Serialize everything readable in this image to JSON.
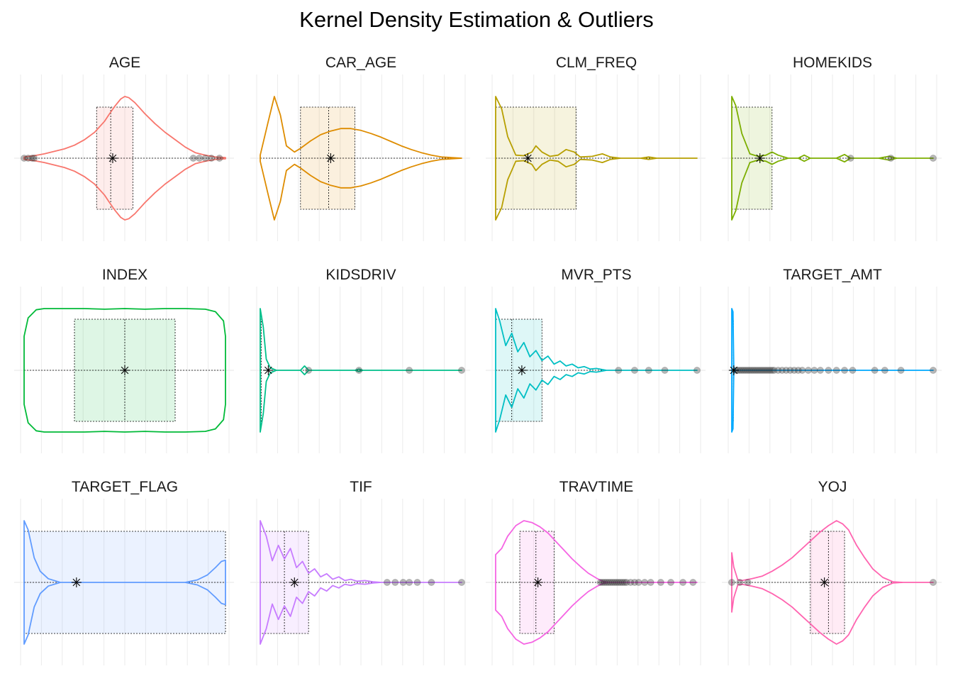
{
  "title": "Kernel Density Estimation & Outliers",
  "chart_data": {
    "type": "violin",
    "title": "Kernel Density Estimation & Outliers",
    "xlabel": "",
    "ylabel": "",
    "grid": "vertical",
    "legend": "none",
    "value_scale": "normalized 0-1 within each panel",
    "panels": [
      {
        "name": "AGE",
        "color": "#F8766D",
        "density": [
          [
            0.0,
            0.02
          ],
          [
            0.05,
            0.04
          ],
          [
            0.1,
            0.07
          ],
          [
            0.15,
            0.11
          ],
          [
            0.2,
            0.15
          ],
          [
            0.25,
            0.21
          ],
          [
            0.3,
            0.3
          ],
          [
            0.35,
            0.42
          ],
          [
            0.4,
            0.6
          ],
          [
            0.42,
            0.7
          ],
          [
            0.45,
            0.84
          ],
          [
            0.48,
            0.96
          ],
          [
            0.5,
            1.0
          ],
          [
            0.52,
            0.98
          ],
          [
            0.55,
            0.9
          ],
          [
            0.6,
            0.72
          ],
          [
            0.65,
            0.56
          ],
          [
            0.7,
            0.42
          ],
          [
            0.75,
            0.3
          ],
          [
            0.8,
            0.18
          ],
          [
            0.85,
            0.09
          ],
          [
            0.9,
            0.05
          ],
          [
            0.95,
            0.02
          ],
          [
            1.0,
            0.01
          ]
        ],
        "box": {
          "q1": 0.36,
          "median": 0.43,
          "q3": 0.54,
          "mean": 0.44
        },
        "outliers": [
          0.0,
          0.02,
          0.04,
          0.05,
          0.84,
          0.87,
          0.9,
          0.93,
          0.97
        ]
      },
      {
        "name": "CAR_AGE",
        "color": "#DE8C00",
        "density": [
          [
            0.0,
            0.05
          ],
          [
            0.04,
            0.6
          ],
          [
            0.07,
            1.0
          ],
          [
            0.1,
            0.7
          ],
          [
            0.13,
            0.2
          ],
          [
            0.17,
            0.1
          ],
          [
            0.2,
            0.16
          ],
          [
            0.25,
            0.28
          ],
          [
            0.3,
            0.38
          ],
          [
            0.35,
            0.44
          ],
          [
            0.4,
            0.48
          ],
          [
            0.45,
            0.48
          ],
          [
            0.5,
            0.45
          ],
          [
            0.55,
            0.4
          ],
          [
            0.6,
            0.34
          ],
          [
            0.65,
            0.27
          ],
          [
            0.7,
            0.2
          ],
          [
            0.75,
            0.14
          ],
          [
            0.8,
            0.09
          ],
          [
            0.85,
            0.05
          ],
          [
            0.9,
            0.02
          ],
          [
            0.95,
            0.01
          ],
          [
            1.0,
            0.0
          ]
        ],
        "box": {
          "q1": 0.2,
          "median": 0.34,
          "q3": 0.47,
          "mean": 0.35
        },
        "outliers": []
      },
      {
        "name": "CLM_FREQ",
        "color": "#B79F00",
        "density": [
          [
            0.0,
            1.0
          ],
          [
            0.03,
            0.8
          ],
          [
            0.06,
            0.35
          ],
          [
            0.1,
            0.05
          ],
          [
            0.14,
            0.04
          ],
          [
            0.18,
            0.1
          ],
          [
            0.2,
            0.2
          ],
          [
            0.23,
            0.1
          ],
          [
            0.27,
            0.03
          ],
          [
            0.31,
            0.05
          ],
          [
            0.35,
            0.14
          ],
          [
            0.39,
            0.1
          ],
          [
            0.42,
            0.02
          ],
          [
            0.48,
            0.03
          ],
          [
            0.53,
            0.07
          ],
          [
            0.57,
            0.02
          ],
          [
            0.62,
            0.0
          ],
          [
            0.72,
            0.0
          ],
          [
            0.76,
            0.02
          ],
          [
            0.8,
            0.0
          ],
          [
            1.0,
            0.0
          ]
        ],
        "box": {
          "q1": 0.0,
          "median": 0.0,
          "q3": 0.4,
          "mean": 0.16
        },
        "outliers": []
      },
      {
        "name": "HOMEKIDS",
        "color": "#7CAE00",
        "density": [
          [
            0.0,
            1.0
          ],
          [
            0.02,
            0.85
          ],
          [
            0.05,
            0.4
          ],
          [
            0.09,
            0.07
          ],
          [
            0.13,
            0.03
          ],
          [
            0.17,
            0.05
          ],
          [
            0.2,
            0.1
          ],
          [
            0.23,
            0.05
          ],
          [
            0.28,
            0.0
          ],
          [
            0.33,
            0.0
          ],
          [
            0.36,
            0.05
          ],
          [
            0.39,
            0.0
          ],
          [
            0.52,
            0.0
          ],
          [
            0.56,
            0.06
          ],
          [
            0.59,
            0.0
          ],
          [
            0.73,
            0.0
          ],
          [
            0.78,
            0.03
          ],
          [
            0.82,
            0.0
          ],
          [
            1.0,
            0.0
          ]
        ],
        "box": {
          "q1": 0.0,
          "median": 0.0,
          "q3": 0.2,
          "mean": 0.14
        },
        "outliers": [
          0.59,
          0.79,
          1.0
        ]
      },
      {
        "name": "INDEX",
        "color": "#00BA38",
        "density": [
          [
            0.0,
            0.55
          ],
          [
            0.02,
            0.85
          ],
          [
            0.06,
            0.98
          ],
          [
            0.1,
            1.0
          ],
          [
            0.2,
            1.0
          ],
          [
            0.3,
            1.0
          ],
          [
            0.4,
            0.99
          ],
          [
            0.5,
            1.0
          ],
          [
            0.6,
            0.99
          ],
          [
            0.7,
            1.0
          ],
          [
            0.8,
            1.0
          ],
          [
            0.9,
            0.99
          ],
          [
            0.95,
            0.95
          ],
          [
            0.99,
            0.8
          ],
          [
            1.0,
            0.55
          ]
        ],
        "box": {
          "q1": 0.25,
          "median": 0.5,
          "q3": 0.75,
          "mean": 0.5
        },
        "outliers": []
      },
      {
        "name": "KIDSDRIV",
        "color": "#00C08B",
        "density": [
          [
            0.0,
            1.0
          ],
          [
            0.015,
            0.7
          ],
          [
            0.03,
            0.18
          ],
          [
            0.05,
            0.04
          ],
          [
            0.08,
            0.0
          ],
          [
            0.2,
            0.0
          ],
          [
            0.22,
            0.07
          ],
          [
            0.24,
            0.0
          ],
          [
            0.47,
            0.0
          ],
          [
            0.49,
            0.02
          ],
          [
            0.51,
            0.0
          ],
          [
            1.0,
            0.0
          ]
        ],
        "box": {
          "q1": 0.0,
          "median": 0.0,
          "q3": 0.0,
          "mean": 0.04
        },
        "outliers": [
          0.24,
          0.49,
          0.74,
          1.0
        ]
      },
      {
        "name": "MVR_PTS",
        "color": "#00BFC4",
        "density": [
          [
            0.0,
            1.0
          ],
          [
            0.02,
            0.8
          ],
          [
            0.05,
            0.4
          ],
          [
            0.08,
            0.6
          ],
          [
            0.11,
            0.3
          ],
          [
            0.14,
            0.45
          ],
          [
            0.17,
            0.22
          ],
          [
            0.2,
            0.32
          ],
          [
            0.23,
            0.16
          ],
          [
            0.26,
            0.23
          ],
          [
            0.29,
            0.1
          ],
          [
            0.32,
            0.15
          ],
          [
            0.35,
            0.07
          ],
          [
            0.38,
            0.1
          ],
          [
            0.41,
            0.04
          ],
          [
            0.44,
            0.06
          ],
          [
            0.47,
            0.02
          ],
          [
            0.5,
            0.03
          ],
          [
            0.55,
            0.0
          ],
          [
            1.0,
            0.0
          ]
        ],
        "box": {
          "q1": 0.0,
          "median": 0.08,
          "q3": 0.23,
          "mean": 0.13
        },
        "outliers": [
          0.61,
          0.69,
          0.76,
          0.84,
          1.0
        ]
      },
      {
        "name": "TARGET_AMT",
        "color": "#00A9FF",
        "density": [
          [
            0.0,
            1.0
          ],
          [
            0.006,
            0.95
          ],
          [
            0.01,
            0.05
          ],
          [
            0.02,
            0.0
          ],
          [
            1.0,
            0.0
          ]
        ],
        "box": {
          "q1": 0.0,
          "median": 0.0,
          "q3": 0.008,
          "mean": 0.01
        },
        "outliers": [
          0.02,
          0.03,
          0.04,
          0.05,
          0.06,
          0.07,
          0.08,
          0.09,
          0.1,
          0.11,
          0.12,
          0.13,
          0.14,
          0.15,
          0.16,
          0.17,
          0.18,
          0.19,
          0.2,
          0.21,
          0.23,
          0.25,
          0.27,
          0.29,
          0.31,
          0.33,
          0.35,
          0.38,
          0.41,
          0.44,
          0.48,
          0.52,
          0.56,
          0.6,
          0.71,
          0.76,
          0.84,
          1.0
        ]
      },
      {
        "name": "TARGET_FLAG",
        "color": "#619CFF",
        "density": [
          [
            0.0,
            1.0
          ],
          [
            0.02,
            0.85
          ],
          [
            0.05,
            0.4
          ],
          [
            0.08,
            0.18
          ],
          [
            0.12,
            0.06
          ],
          [
            0.18,
            0.0
          ],
          [
            0.8,
            0.0
          ],
          [
            0.86,
            0.04
          ],
          [
            0.91,
            0.12
          ],
          [
            0.95,
            0.24
          ],
          [
            0.98,
            0.34
          ],
          [
            1.0,
            0.36
          ]
        ],
        "box": {
          "q1": 0.0,
          "median": 0.0,
          "q3": 1.0,
          "mean": 0.26
        },
        "outliers": []
      },
      {
        "name": "TIF",
        "color": "#C77CFF",
        "density": [
          [
            0.0,
            1.0
          ],
          [
            0.03,
            0.75
          ],
          [
            0.06,
            0.35
          ],
          [
            0.09,
            0.6
          ],
          [
            0.12,
            0.38
          ],
          [
            0.15,
            0.55
          ],
          [
            0.18,
            0.24
          ],
          [
            0.21,
            0.34
          ],
          [
            0.24,
            0.15
          ],
          [
            0.27,
            0.22
          ],
          [
            0.3,
            0.09
          ],
          [
            0.33,
            0.14
          ],
          [
            0.36,
            0.05
          ],
          [
            0.39,
            0.09
          ],
          [
            0.42,
            0.03
          ],
          [
            0.45,
            0.05
          ],
          [
            0.48,
            0.02
          ],
          [
            0.52,
            0.03
          ],
          [
            0.56,
            0.01
          ],
          [
            0.6,
            0.0
          ],
          [
            1.0,
            0.0
          ]
        ],
        "box": {
          "q1": 0.0,
          "median": 0.12,
          "q3": 0.24,
          "mean": 0.17
        },
        "outliers": [
          0.63,
          0.67,
          0.71,
          0.74,
          0.78,
          0.85,
          1.0
        ]
      },
      {
        "name": "TRAVTIME",
        "color": "#F564E3",
        "density": [
          [
            0.0,
            0.45
          ],
          [
            0.03,
            0.55
          ],
          [
            0.06,
            0.75
          ],
          [
            0.1,
            0.92
          ],
          [
            0.14,
            1.0
          ],
          [
            0.18,
            0.97
          ],
          [
            0.22,
            0.9
          ],
          [
            0.26,
            0.8
          ],
          [
            0.3,
            0.66
          ],
          [
            0.34,
            0.52
          ],
          [
            0.38,
            0.38
          ],
          [
            0.42,
            0.26
          ],
          [
            0.46,
            0.15
          ],
          [
            0.5,
            0.07
          ],
          [
            0.53,
            0.02
          ],
          [
            0.56,
            0.0
          ],
          [
            1.0,
            0.0
          ]
        ],
        "box": {
          "q1": 0.12,
          "median": 0.2,
          "q3": 0.29,
          "mean": 0.21
        },
        "outliers": [
          0.52,
          0.53,
          0.54,
          0.55,
          0.56,
          0.57,
          0.58,
          0.59,
          0.6,
          0.61,
          0.62,
          0.63,
          0.64,
          0.65,
          0.67,
          0.69,
          0.71,
          0.74,
          0.77,
          0.82,
          0.87,
          0.93,
          0.98
        ]
      },
      {
        "name": "YOJ",
        "color": "#FF64B0",
        "density": [
          [
            0.0,
            0.48
          ],
          [
            0.01,
            0.25
          ],
          [
            0.03,
            0.04
          ],
          [
            0.05,
            0.03
          ],
          [
            0.1,
            0.06
          ],
          [
            0.15,
            0.1
          ],
          [
            0.2,
            0.18
          ],
          [
            0.25,
            0.28
          ],
          [
            0.3,
            0.4
          ],
          [
            0.35,
            0.55
          ],
          [
            0.4,
            0.7
          ],
          [
            0.44,
            0.82
          ],
          [
            0.48,
            0.92
          ],
          [
            0.52,
            1.0
          ],
          [
            0.55,
            0.95
          ],
          [
            0.58,
            0.85
          ],
          [
            0.62,
            0.6
          ],
          [
            0.66,
            0.4
          ],
          [
            0.7,
            0.22
          ],
          [
            0.75,
            0.08
          ],
          [
            0.8,
            0.01
          ],
          [
            0.85,
            0.0
          ],
          [
            1.0,
            0.0
          ]
        ],
        "box": {
          "q1": 0.39,
          "median": 0.48,
          "q3": 0.56,
          "mean": 0.46
        },
        "outliers": [
          0.0,
          0.04,
          0.08,
          1.0
        ]
      }
    ]
  }
}
